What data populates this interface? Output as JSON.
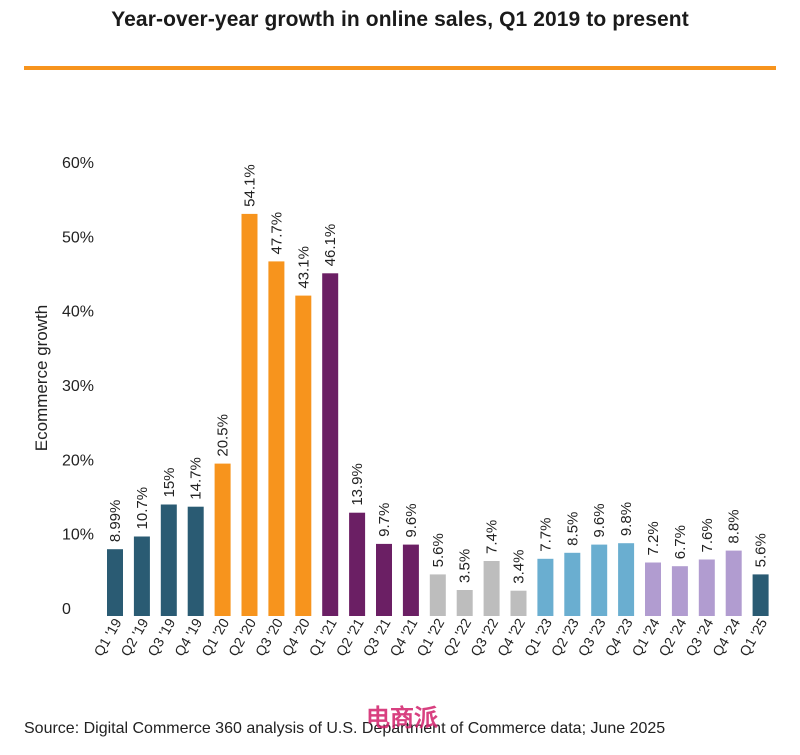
{
  "header": {
    "title": "Year-over-year growth in online sales, Q1 2019 to present"
  },
  "footer": {
    "source": "Source: Digital Commerce 360 analysis of U.S. Department of Commerce data; June 2025"
  },
  "watermark": {
    "text": "电商派"
  },
  "colors": {
    "accent_rule": "#f7941d",
    "y2019": "#2a5b73",
    "y2020": "#f7941d",
    "y2021": "#6b1f64",
    "y2022": "#bdbdbd",
    "y2023": "#6aaed0",
    "y2024": "#b19cd0",
    "y2025": "#2a5b73",
    "watermark": "#d11f6a"
  },
  "chart_data": {
    "type": "bar",
    "title": "Year-over-year growth in online sales, Q1 2019 to present",
    "xlabel": "",
    "ylabel": "Ecommerce growth",
    "ylim": [
      0,
      60
    ],
    "yticks": [
      0,
      10,
      20,
      30,
      40,
      50,
      60
    ],
    "ytick_labels": [
      "0",
      "10%",
      "20%",
      "30%",
      "40%",
      "50%",
      "60%"
    ],
    "grid": false,
    "categories": [
      "Q1 '19",
      "Q2 '19",
      "Q3 '19",
      "Q4 '19",
      "Q1 '20",
      "Q2 '20",
      "Q3 '20",
      "Q4 '20",
      "Q1 '21",
      "Q2 '21",
      "Q3 '21",
      "Q4 '21",
      "Q1 '22",
      "Q2 '22",
      "Q3 '22",
      "Q4 '22",
      "Q1 '23",
      "Q2 '23",
      "Q3 '23",
      "Q4 '23",
      "Q1 '24",
      "Q2 '24",
      "Q3 '24",
      "Q4 '24",
      "Q1 '25"
    ],
    "values": [
      8.99,
      10.7,
      15,
      14.7,
      20.5,
      54.1,
      47.7,
      43.1,
      46.1,
      13.9,
      9.7,
      9.6,
      5.6,
      3.5,
      7.4,
      3.4,
      7.7,
      8.5,
      9.6,
      9.8,
      7.2,
      6.7,
      7.6,
      8.8,
      5.6
    ],
    "value_labels": [
      "8.99%",
      "10.7%",
      "15%",
      "14.7%",
      "20.5%",
      "54.1%",
      "47.7%",
      "43.1%",
      "46.1%",
      "13.9%",
      "9.7%",
      "9.6%",
      "5.6%",
      "3.5%",
      "7.4%",
      "3.4%",
      "7.7%",
      "8.5%",
      "9.6%",
      "9.8%",
      "7.2%",
      "6.7%",
      "7.6%",
      "8.8%",
      "5.6%"
    ],
    "year_groups": [
      "y2019",
      "y2019",
      "y2019",
      "y2019",
      "y2020",
      "y2020",
      "y2020",
      "y2020",
      "y2021",
      "y2021",
      "y2021",
      "y2021",
      "y2022",
      "y2022",
      "y2022",
      "y2022",
      "y2023",
      "y2023",
      "y2023",
      "y2023",
      "y2024",
      "y2024",
      "y2024",
      "y2024",
      "y2025"
    ]
  }
}
